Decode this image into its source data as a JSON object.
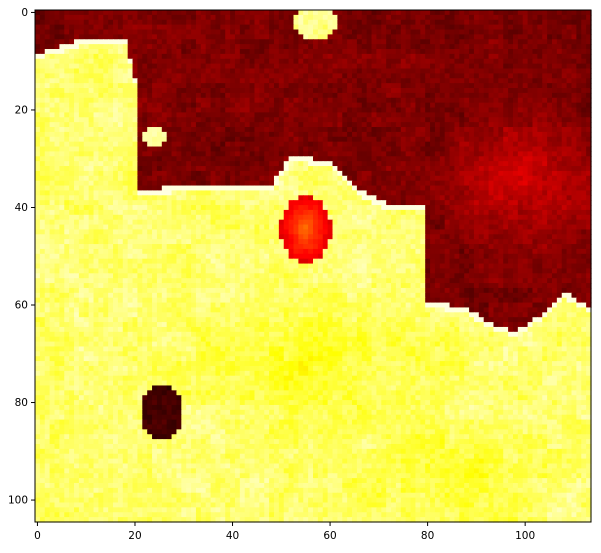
{
  "chart_data": {
    "type": "heatmap",
    "title": "",
    "xlabel": "",
    "ylabel": "",
    "colormap": "hot",
    "x_range": [
      0,
      113
    ],
    "y_range": [
      0,
      104
    ],
    "y_inverted": true,
    "x_ticks": [
      0,
      20,
      40,
      60,
      80,
      100
    ],
    "y_ticks": [
      0,
      20,
      40,
      60,
      80,
      100
    ],
    "grid": false,
    "legend": "none",
    "regions": [
      {
        "name": "hot-region",
        "approx_value": 0.9,
        "description": "bright yellow region, lower-left and bottom"
      },
      {
        "name": "cool-region",
        "approx_value": 0.15,
        "description": "dark red region, upper-right"
      },
      {
        "name": "blob",
        "center": [
          55,
          45
        ],
        "approx_value": 0.35
      },
      {
        "name": "blob",
        "center": [
          25,
          82
        ],
        "approx_value": 0.1
      },
      {
        "name": "blob",
        "center": [
          57,
          2
        ],
        "approx_value": 0.9
      },
      {
        "name": "blob",
        "center": [
          24,
          26
        ],
        "approx_value": 0.9
      }
    ]
  },
  "colors": {
    "dark_red": "#5a0000",
    "red": "#b00000",
    "orange": "#ff8a00",
    "yellow": "#ffe800",
    "light_yellow": "#ffffb0"
  }
}
